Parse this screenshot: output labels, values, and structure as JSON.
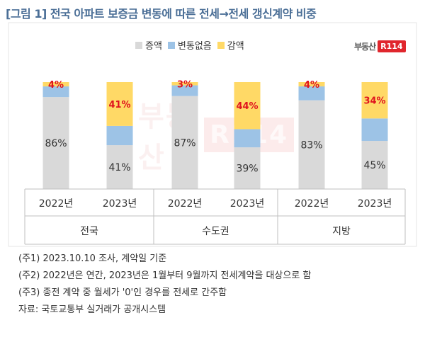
{
  "title": "[그림 1] 전국 아파트 보증금 변동에 따른 전세→전세 갱신계약 비중",
  "logo": {
    "text": "부동산",
    "badge": "R114"
  },
  "colors": {
    "increase": "#d9d9d9",
    "unchanged": "#9dc3e6",
    "decrease": "#ffd966",
    "decrease_label": "#e0141e",
    "title": "#4a6e96"
  },
  "chart_data": {
    "type": "bar",
    "stacked": true,
    "percent": true,
    "ylim": [
      0,
      100
    ],
    "grid": false,
    "legend_position": "top",
    "groups": [
      "전국",
      "수도권",
      "지방"
    ],
    "categories": [
      "2022년",
      "2023년",
      "2022년",
      "2023년",
      "2022년",
      "2023년"
    ],
    "series": [
      {
        "name": "증액",
        "values": [
          86,
          41,
          87,
          39,
          83,
          45
        ],
        "labels": [
          "86%",
          "41%",
          "87%",
          "39%",
          "83%",
          "45%"
        ]
      },
      {
        "name": "변동없음",
        "values": [
          10,
          18,
          10,
          17,
          13,
          21
        ],
        "labels": [
          "",
          "",
          "",
          "",
          "",
          ""
        ]
      },
      {
        "name": "감액",
        "values": [
          4,
          41,
          3,
          44,
          4,
          34
        ],
        "labels": [
          "4%",
          "41%",
          "3%",
          "44%",
          "4%",
          "34%"
        ]
      }
    ]
  },
  "notes": [
    "(주1) 2023.10.10 조사, 계약일 기준",
    "(주2) 2022년은 연간, 2023년은 1월부터 9월까지 전세계약을 대상으로 함",
    "(주3) 종전 계약 중 월세가 '0'인 경우를 전세로 간주함",
    "자료: 국토교통부 실거래가 공개시스템"
  ]
}
